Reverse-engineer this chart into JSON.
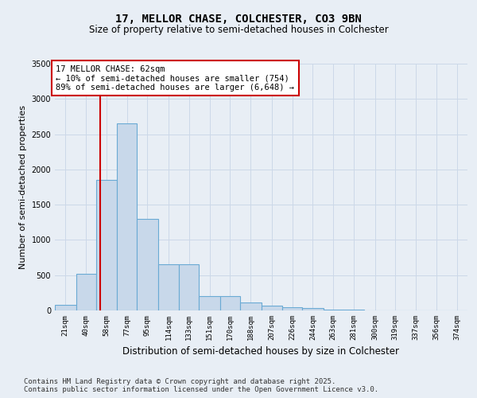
{
  "title_line1": "17, MELLOR CHASE, COLCHESTER, CO3 9BN",
  "title_line2": "Size of property relative to semi-detached houses in Colchester",
  "xlabel": "Distribution of semi-detached houses by size in Colchester",
  "ylabel": "Number of semi-detached properties",
  "bin_edges": [
    21,
    40,
    58,
    77,
    95,
    114,
    133,
    151,
    170,
    188,
    207,
    226,
    244,
    263,
    281,
    300,
    319,
    337,
    356,
    374,
    393
  ],
  "values": [
    75,
    525,
    1850,
    2650,
    1300,
    650,
    650,
    200,
    200,
    110,
    70,
    50,
    30,
    15,
    8,
    5,
    3,
    2,
    1,
    1
  ],
  "bar_color": "#c8d8ea",
  "bar_edge_color": "#6aaad4",
  "grid_color": "#ccd8e8",
  "annotation_text": "17 MELLOR CHASE: 62sqm\n← 10% of semi-detached houses are smaller (754)\n89% of semi-detached houses are larger (6,648) →",
  "vline_x": 62,
  "vline_color": "#cc0000",
  "annotation_box_edge": "#cc0000",
  "footer_text": "Contains HM Land Registry data © Crown copyright and database right 2025.\nContains public sector information licensed under the Open Government Licence v3.0.",
  "ylim": [
    0,
    3500
  ],
  "xlim_left": 21,
  "xlim_right": 393,
  "background_color": "#e8eef5",
  "plot_bg_color": "#e8eef5",
  "title_fontsize": 10,
  "subtitle_fontsize": 8.5,
  "ylabel_fontsize": 8,
  "xlabel_fontsize": 8.5,
  "tick_fontsize": 6.5,
  "footer_fontsize": 6.5
}
